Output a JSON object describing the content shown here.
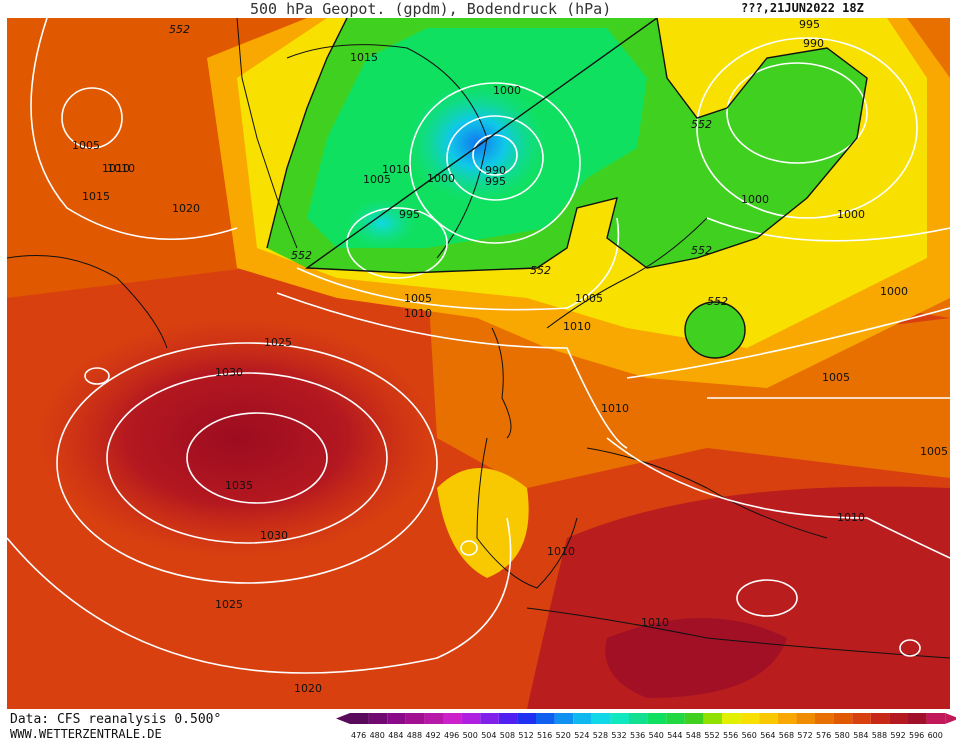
{
  "header": {
    "title": "500 hPa Geopot. (gpdm), Bodendruck (hPa)",
    "date": "???,21JUN2022 18Z"
  },
  "footer": {
    "source": "Data: CFS reanalysis 0.500°",
    "url": "WWW.WETTERZENTRALE.DE"
  },
  "legend": {
    "values": [
      "476",
      "480",
      "484",
      "488",
      "492",
      "496",
      "500",
      "504",
      "508",
      "512",
      "516",
      "520",
      "524",
      "528",
      "532",
      "536",
      "540",
      "544",
      "548",
      "552",
      "556",
      "560",
      "564",
      "568",
      "572",
      "576",
      "580",
      "584",
      "588",
      "592",
      "596",
      "600"
    ],
    "colors": [
      "#5a0a5a",
      "#700a70",
      "#8a0a8a",
      "#a01090",
      "#b818a8",
      "#cc20c8",
      "#b020e0",
      "#8020e8",
      "#5020f0",
      "#2030f0",
      "#1060f0",
      "#1090f0",
      "#10b8f0",
      "#10d8e8",
      "#10e8c0",
      "#10e090",
      "#10e060",
      "#20d840",
      "#40d020",
      "#90e000",
      "#e0f000",
      "#f8e000",
      "#f8c800",
      "#f8a800",
      "#f08c00",
      "#e87000",
      "#e05800",
      "#d84010",
      "#c82818",
      "#b41820",
      "#a01028",
      "#c01858"
    ]
  },
  "isobars": {
    "labels": [
      "1015",
      "1000",
      "990",
      "995",
      "1010",
      "1005",
      "1000",
      "995",
      "1010",
      "1005",
      "1010",
      "1015",
      "1020",
      "1005",
      "1010",
      "1025",
      "1030",
      "1035",
      "1030",
      "1025",
      "1020",
      "1005",
      "1010",
      "1010",
      "1010",
      "1010",
      "1000",
      "1000",
      "1000",
      "1005",
      "1005",
      "1010",
      "995",
      "990"
    ]
  },
  "height_labels": [
    "552",
    "552",
    "552",
    "552",
    "552",
    "552"
  ]
}
